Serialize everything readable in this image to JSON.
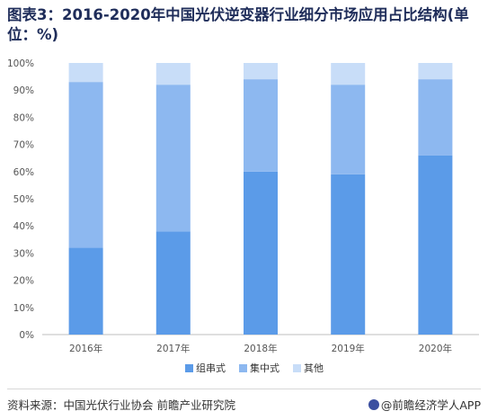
{
  "header": {
    "title": "图表3：2016-2020年中国光伏逆变器行业细分市场应用占比结构(单位：%)"
  },
  "chart_data": {
    "type": "bar",
    "stacked": true,
    "categories": [
      "2016年",
      "2017年",
      "2018年",
      "2019年",
      "2020年"
    ],
    "series": [
      {
        "name": "组串式",
        "values": [
          32,
          38,
          60,
          59,
          66
        ],
        "color": "#5b9be8"
      },
      {
        "name": "集中式",
        "values": [
          61,
          54,
          34,
          33,
          28
        ],
        "color": "#8db8f0"
      },
      {
        "name": "其他",
        "values": [
          7,
          8,
          6,
          8,
          6
        ],
        "color": "#c8ddf8"
      }
    ],
    "y_ticks": [
      "0%",
      "10%",
      "20%",
      "30%",
      "40%",
      "50%",
      "60%",
      "70%",
      "80%",
      "90%",
      "100%"
    ],
    "ylim": [
      0,
      100
    ],
    "grid": false,
    "legend_position": "bottom"
  },
  "footer": {
    "source": "资料来源：中国光伏行业协会 前瞻产业研究院",
    "brand": "@前瞻经济学人APP"
  }
}
